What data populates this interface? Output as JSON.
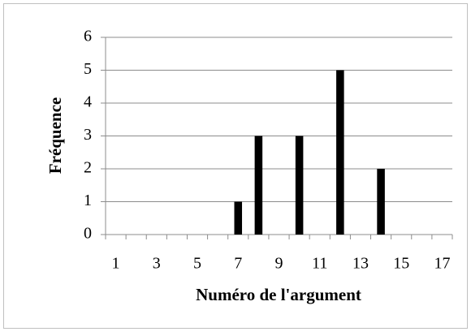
{
  "chart_data": {
    "type": "bar",
    "x_label": "Numéro de l'argument",
    "y_label": "Fréquence",
    "categories": [
      1,
      null,
      3,
      null,
      5,
      null,
      7,
      null,
      9,
      null,
      11,
      null,
      13,
      null,
      15,
      null,
      17
    ],
    "values": [
      0,
      0,
      0,
      0,
      0,
      0,
      1,
      3,
      0,
      3,
      0,
      5,
      0,
      2,
      0,
      0,
      0
    ],
    "color": "#000000",
    "ylim": [
      0,
      6
    ],
    "yticks": [
      0,
      1,
      2,
      3,
      4,
      5,
      6
    ],
    "grid": true
  }
}
